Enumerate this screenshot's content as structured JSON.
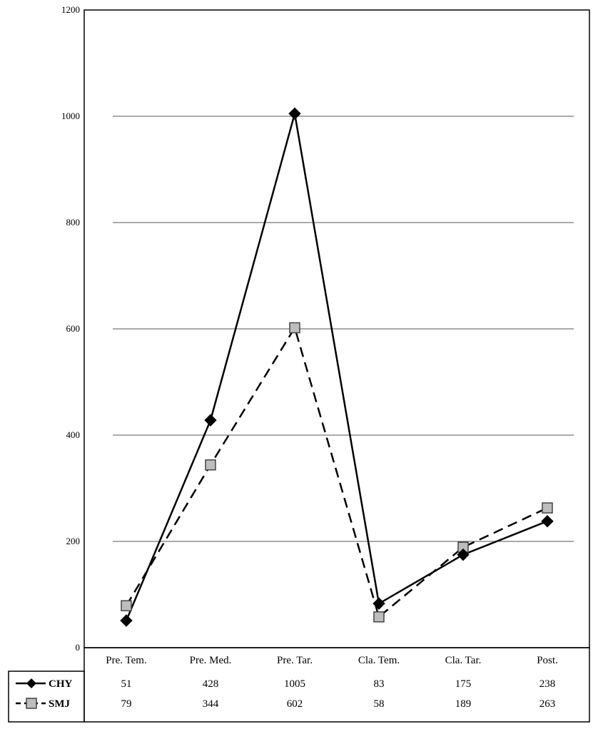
{
  "chart_data": {
    "type": "line",
    "categories": [
      "Pre. Tem.",
      "Pre. Med.",
      "Pre. Tar.",
      "Cla. Tem.",
      "Cla. Tar.",
      "Post."
    ],
    "series": [
      {
        "name": "CHY",
        "values": [
          51,
          428,
          1005,
          83,
          175,
          238
        ],
        "line_style": "solid",
        "marker": "diamond",
        "color": "#000000"
      },
      {
        "name": "SMJ",
        "values": [
          79,
          344,
          602,
          58,
          189,
          263
        ],
        "line_style": "dashed",
        "marker": "square",
        "color": "#bdbdbd"
      }
    ],
    "title": "",
    "xlabel": "",
    "ylabel": "",
    "ylim": [
      0,
      1200
    ],
    "yticks": [
      0,
      200,
      400,
      600,
      800,
      1000,
      1200
    ],
    "grid": true,
    "legend_placement": "bottom-left, in data table"
  }
}
